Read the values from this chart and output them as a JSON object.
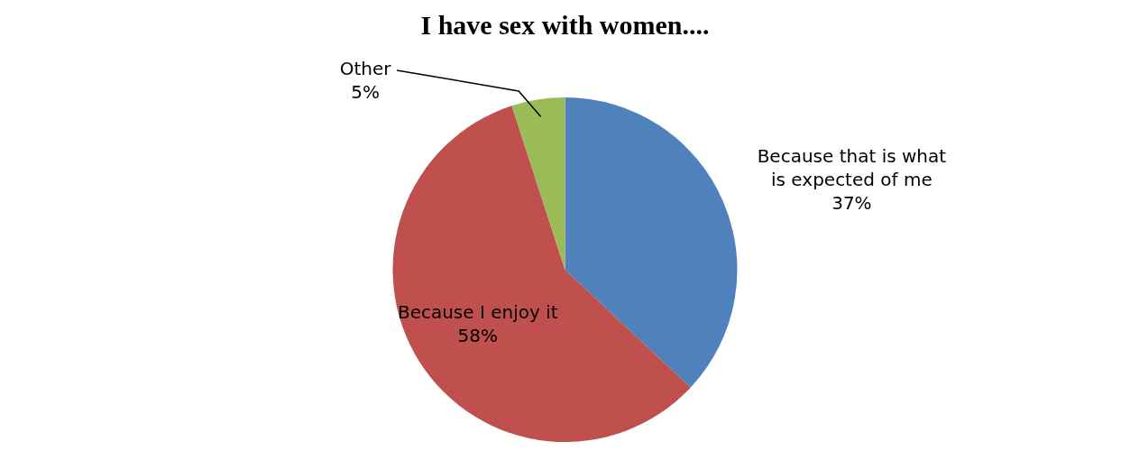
{
  "chart_data": {
    "type": "pie",
    "title": "I have sex with women....",
    "categories": [
      "Because that is what is expected of me",
      "Because I enjoy it",
      "Other"
    ],
    "values": [
      37,
      58,
      5
    ],
    "value_labels": [
      "37%",
      "58%",
      "5%"
    ],
    "colors": [
      "#4f81bd",
      "#c0504d",
      "#9bbb59"
    ],
    "legend": false
  }
}
